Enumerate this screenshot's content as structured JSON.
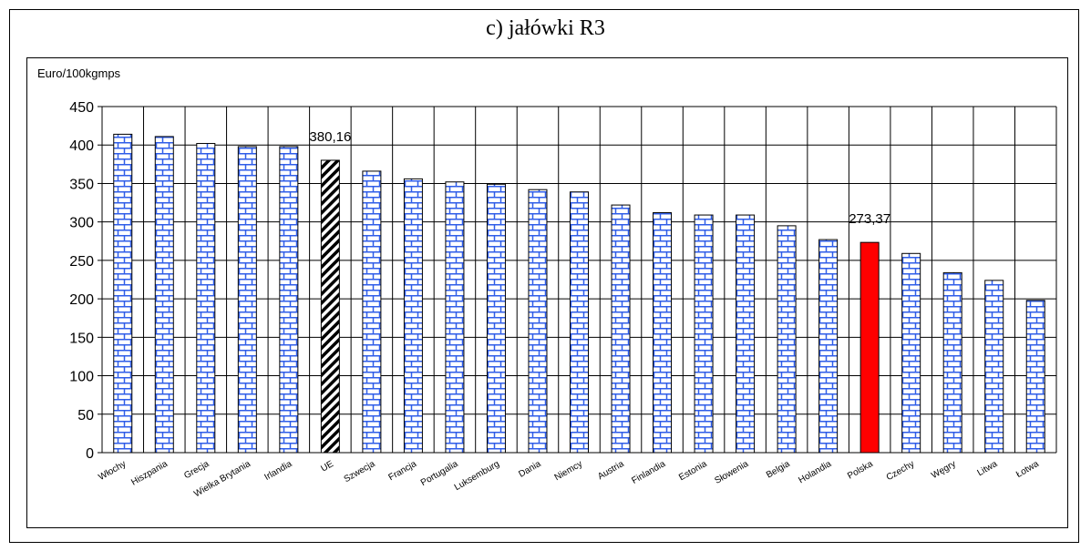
{
  "chart_data": {
    "type": "bar",
    "title": "c) jałówki R3",
    "ylabel": "Euro/100kgmps",
    "xlabel": "",
    "ylim": [
      0,
      450
    ],
    "yticks": [
      0,
      50,
      100,
      150,
      200,
      250,
      300,
      350,
      400,
      450
    ],
    "grid": true,
    "categories": [
      "Włochy",
      "Hiszpania",
      "Grecja",
      "Wielka Brytania",
      "Irlandia",
      "UE",
      "Szwecja",
      "Francja",
      "Portugalia",
      "Luksemburg",
      "Dania",
      "Niemcy",
      "Austria",
      "Finlandia",
      "Estonia",
      "Słowenia",
      "Belgia",
      "Holandia",
      "Polska",
      "Czechy",
      "Węgry",
      "Litwa",
      "Łotwa"
    ],
    "values": [
      414,
      411,
      402,
      398,
      398,
      380.16,
      366,
      356,
      352,
      349,
      342,
      339,
      322,
      312,
      309,
      309,
      295,
      277,
      273.37,
      259,
      234,
      224,
      198
    ],
    "data_labels": [
      {
        "category": "UE",
        "text": "380,16"
      },
      {
        "category": "Polska",
        "text": "273,37"
      }
    ],
    "colors": {
      "default_fill": "#ffffff",
      "default_pattern": "#2f5de8",
      "highlight_eu": "#000000",
      "highlight_poland": "#ff0000",
      "grid": "#000000"
    }
  }
}
